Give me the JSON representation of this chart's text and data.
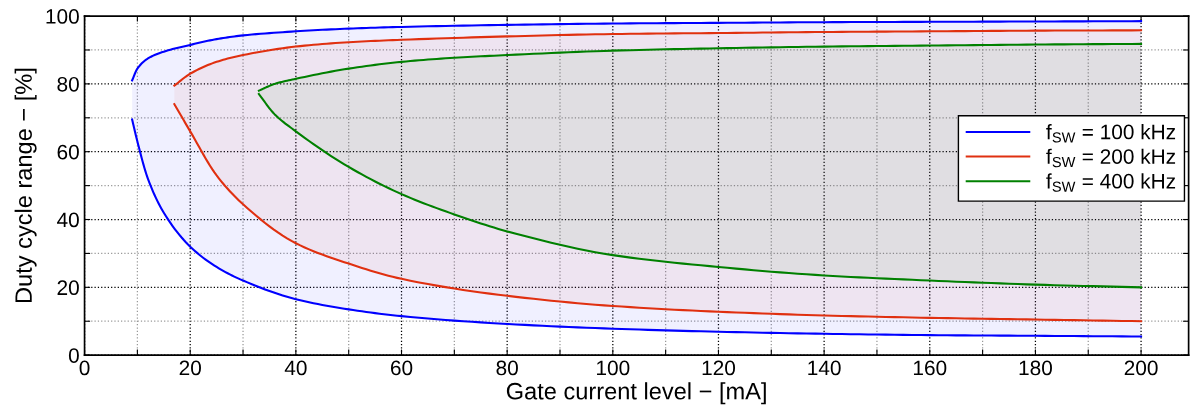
{
  "chart_data": {
    "type": "line",
    "xlabel": "Gate current level − [mA]",
    "ylabel": "Duty cycle range − [%]",
    "xlim": [
      0,
      209
    ],
    "ylim": [
      0,
      100
    ],
    "xticks": [
      0,
      {
        "value": 10,
        "label": null
      },
      20,
      {
        "value": 30,
        "label": null
      },
      40,
      {
        "value": 50,
        "label": null
      },
      60,
      {
        "value": 70,
        "label": null
      },
      80,
      {
        "value": 90,
        "label": null
      },
      100,
      {
        "value": 110,
        "label": null
      },
      120,
      {
        "value": 130,
        "label": null
      },
      140,
      {
        "value": 150,
        "label": null
      },
      160,
      {
        "value": 170,
        "label": null
      },
      180,
      {
        "value": 190,
        "label": null
      },
      200
    ],
    "yticks": [
      0,
      {
        "value": 10,
        "label": null
      },
      20,
      {
        "value": 30,
        "label": null
      },
      40,
      {
        "value": 50,
        "label": null
      },
      60,
      {
        "value": 70,
        "label": null
      },
      80,
      {
        "value": 90,
        "label": null
      },
      100
    ],
    "grid": true,
    "legend": "right",
    "series": [
      {
        "name": "f$_{SW}$ = 100 kHz",
        "color": "#0000ff",
        "x": [
          9,
          10,
          12,
          15,
          20,
          25,
          30,
          40,
          50,
          60,
          80,
          100,
          120,
          140,
          160,
          180,
          200
        ],
        "values": [
          81,
          84.5,
          87.5,
          89.5,
          91.5,
          93.2,
          94.3,
          95.5,
          96.3,
          96.8,
          97.4,
          97.8,
          98,
          98.2,
          98.3,
          98.4,
          98.5
        ],
        "upper": [
          81,
          84.5,
          87.5,
          89.5,
          91.5,
          93.2,
          94.3,
          95.5,
          96.3,
          96.8,
          97.4,
          97.8,
          98,
          98.2,
          98.3,
          98.4,
          98.5
        ],
        "lower": [
          69.5,
          63,
          52,
          42,
          32,
          26,
          22,
          16.5,
          13.5,
          11.5,
          9.2,
          7.8,
          6.9,
          6.3,
          5.9,
          5.7,
          5.5
        ]
      },
      {
        "color": "#0000ff",
        "x": [
          9,
          10,
          12,
          15,
          20,
          25,
          30,
          40,
          50,
          60,
          80,
          100,
          120,
          140,
          160,
          180,
          200
        ],
        "values": [
          69.5,
          63,
          52,
          42,
          32,
          26,
          22,
          16.5,
          13.5,
          11.5,
          9.2,
          7.8,
          6.9,
          6.3,
          5.9,
          5.7,
          5.5
        ]
      },
      {
        "name": "f$_{SW}$ = 200 kHz",
        "color": "#e03010",
        "x": [
          17,
          20,
          25,
          30,
          40,
          50,
          60,
          80,
          100,
          120,
          140,
          160,
          180,
          200
        ],
        "values": [
          79.5,
          83,
          86.5,
          88.5,
          91,
          92.3,
          93,
          94,
          94.7,
          95,
          95.3,
          95.5,
          95.7,
          95.8
        ],
        "upper": [
          79.5,
          83,
          86.5,
          88.5,
          91,
          92.3,
          93,
          94,
          94.7,
          95,
          95.3,
          95.5,
          95.7,
          95.8
        ],
        "lower": [
          74,
          66,
          53,
          44.5,
          33,
          27,
          22.5,
          17.5,
          14.5,
          12.8,
          11.7,
          11,
          10.5,
          10
        ]
      },
      {
        "color": "#e03010",
        "x": [
          17,
          20,
          25,
          30,
          40,
          50,
          60,
          80,
          100,
          120,
          140,
          160,
          180,
          200
        ],
        "values": [
          74,
          66,
          53,
          44.5,
          33,
          27,
          22.5,
          17.5,
          14.5,
          12.8,
          11.7,
          11,
          10.5,
          10
        ]
      },
      {
        "name": "f$_{SW}$ = 400 kHz",
        "color": "#008000",
        "x": [
          33,
          36,
          40,
          50,
          60,
          70,
          80,
          100,
          120,
          140,
          160,
          180,
          200
        ],
        "values": [
          78,
          80,
          81.5,
          84.5,
          86.5,
          87.7,
          88.5,
          89.8,
          90.5,
          91,
          91.3,
          91.6,
          91.8
        ],
        "upper": [
          78,
          80,
          81.5,
          84.5,
          86.5,
          87.7,
          88.5,
          89.8,
          90.5,
          91,
          91.3,
          91.6,
          91.8
        ],
        "lower": [
          77,
          71,
          66,
          55.5,
          47.5,
          41.5,
          36.5,
          29.5,
          26,
          23.5,
          22,
          20.8,
          20
        ]
      },
      {
        "color": "#008000",
        "x": [
          33,
          36,
          40,
          50,
          60,
          70,
          80,
          100,
          120,
          140,
          160,
          180,
          200
        ],
        "values": [
          77,
          71,
          66,
          55.5,
          47.5,
          41.5,
          36.5,
          29.5,
          26,
          23.5,
          22,
          20.8,
          20
        ]
      }
    ]
  }
}
